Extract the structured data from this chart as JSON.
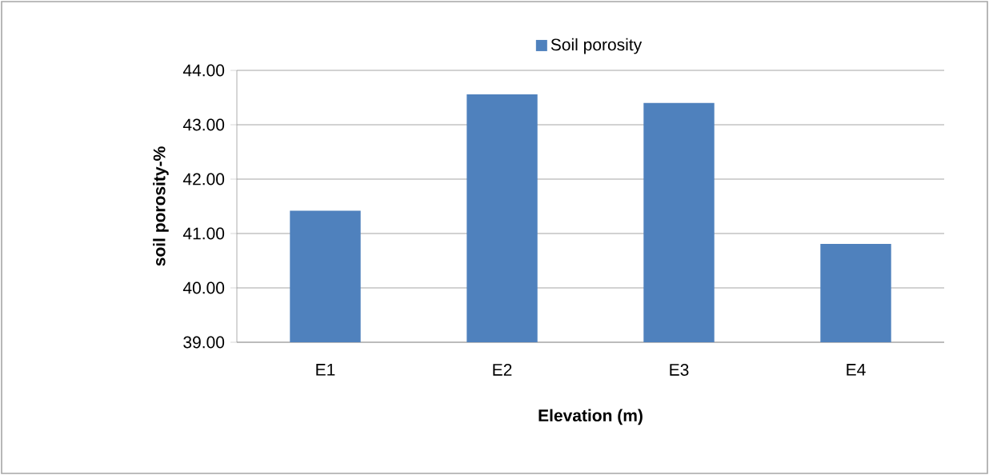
{
  "chart_data": {
    "type": "bar",
    "categories": [
      "E1",
      "E2",
      "E3",
      "E4"
    ],
    "series": [
      {
        "name": "Soil porosity",
        "color": "#4f81bd",
        "values": [
          41.42,
          43.56,
          43.4,
          40.81
        ]
      }
    ],
    "xlabel": "Elevation (m)",
    "ylabel": "soil porosity-%",
    "ylim": [
      39,
      44
    ],
    "yticks": [
      {
        "value": 39,
        "label": "39.00"
      },
      {
        "value": 40,
        "label": "40.00"
      },
      {
        "value": 41,
        "label": "41.00"
      },
      {
        "value": 42,
        "label": "42.00"
      },
      {
        "value": 43,
        "label": "43.00"
      },
      {
        "value": 44,
        "label": "44.00"
      }
    ],
    "grid": "y",
    "legend": "top"
  }
}
